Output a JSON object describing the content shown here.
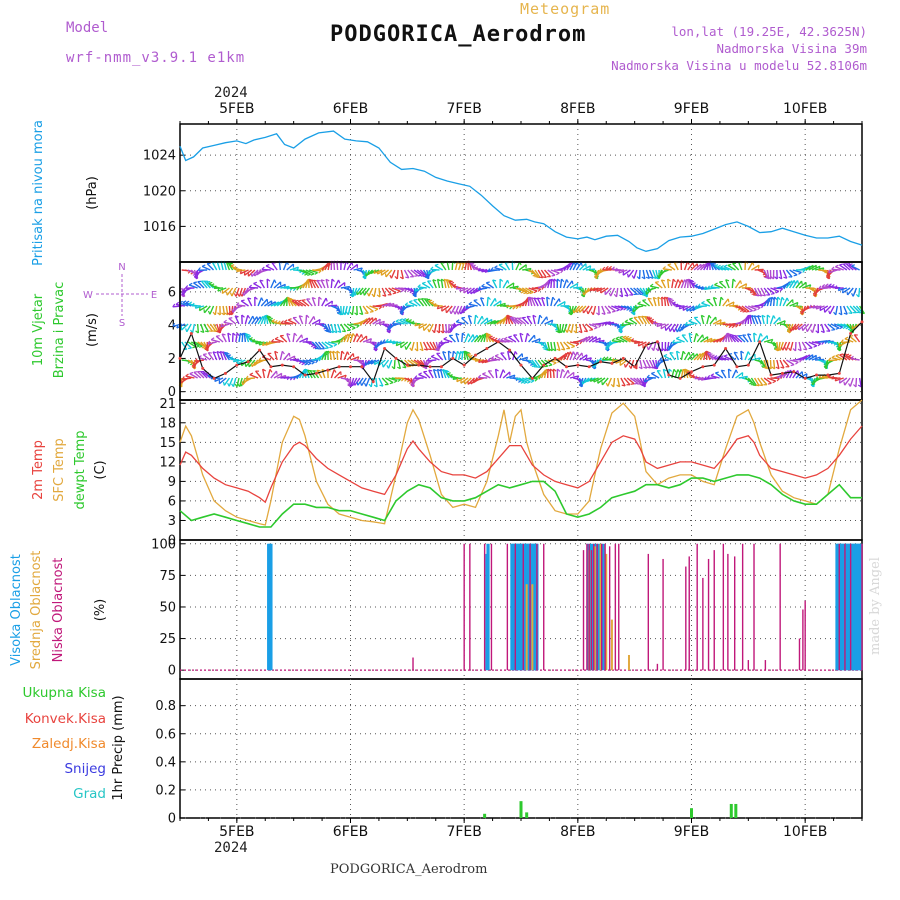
{
  "header": {
    "model_label": "Model",
    "model_version": "wrf-nmm_v3.9.1 e1km",
    "meteogram_label": "Meteogram",
    "station_title": "PODGORICA_Aerodrom",
    "lonlat": "lon,lat (19.25E, 42.3625N)",
    "elevation": "Nadmorska Visina 39m",
    "model_elevation": "Nadmorska Visina u modelu 52.8106m",
    "year_top": "2024",
    "year_bottom": "2024",
    "footer_station": "PODGORICA_Aerodrom",
    "made_by": "made by Angel"
  },
  "colors": {
    "pressure": "#1a9fe6",
    "temp2m": "#e8433e",
    "sfc_temp": "#e2a93f",
    "dewpoint": "#2ec92e",
    "high_cloud": "#1a9fe6",
    "mid_cloud": "#e2a93f",
    "low_cloud": "#c0187a",
    "total_precip": "#2ec92e",
    "conv_precip": "#e8433e",
    "frozen_precip": "#f08a2c",
    "snow": "#3b3be0",
    "graupel": "#27c6c6",
    "wind_dir_label": "#b05ccf"
  },
  "chart_data": [
    {
      "type": "line",
      "panel": "pressure",
      "ylabel": [
        "Pritisak na nivou mora",
        "(hPa)"
      ],
      "ylim": [
        1012,
        1027.5
      ],
      "yticks": [
        1016,
        1020,
        1024
      ],
      "x_unit": "days since 4FEB 00UTC",
      "xlim": [
        0.5,
        6.5
      ],
      "xticks": [
        1,
        2,
        3,
        4,
        5,
        6
      ],
      "xtick_labels": [
        "5FEB",
        "6FEB",
        "7FEB",
        "8FEB",
        "9FEB",
        "10FEB"
      ],
      "grid": true,
      "series": [
        {
          "name": "pressure",
          "x": [
            0.5,
            0.55,
            0.62,
            0.7,
            0.8,
            0.9,
            1.0,
            1.08,
            1.15,
            1.25,
            1.35,
            1.42,
            1.5,
            1.6,
            1.72,
            1.85,
            1.95,
            2.05,
            2.15,
            2.25,
            2.35,
            2.45,
            2.55,
            2.65,
            2.75,
            2.85,
            2.95,
            3.05,
            3.15,
            3.25,
            3.35,
            3.45,
            3.55,
            3.62,
            3.7,
            3.8,
            3.9,
            4.0,
            4.08,
            4.15,
            4.25,
            4.35,
            4.45,
            4.52,
            4.6,
            4.7,
            4.8,
            4.9,
            5.0,
            5.1,
            5.2,
            5.3,
            5.4,
            5.5,
            5.6,
            5.7,
            5.8,
            5.9,
            6.0,
            6.1,
            6.2,
            6.3,
            6.4,
            6.5
          ],
          "values": [
            1025,
            1023.4,
            1023.8,
            1024.8,
            1025.1,
            1025.4,
            1025.6,
            1025.3,
            1025.7,
            1026.0,
            1026.4,
            1025.2,
            1024.8,
            1025.8,
            1026.5,
            1026.7,
            1025.8,
            1025.6,
            1025.5,
            1024.8,
            1023.2,
            1022.4,
            1022.5,
            1022.2,
            1021.5,
            1021.1,
            1020.8,
            1020.5,
            1019.5,
            1018.3,
            1017.2,
            1016.7,
            1016.8,
            1016.5,
            1016.3,
            1015.4,
            1014.8,
            1014.6,
            1014.8,
            1014.5,
            1014.9,
            1015.0,
            1014.3,
            1013.6,
            1013.2,
            1013.5,
            1014.4,
            1014.8,
            1014.9,
            1015.2,
            1015.7,
            1016.2,
            1016.5,
            1016.0,
            1015.3,
            1015.4,
            1015.8,
            1015.4,
            1015.0,
            1014.7,
            1014.7,
            1014.9,
            1014.3,
            1013.9
          ]
        }
      ]
    },
    {
      "type": "line",
      "panel": "wind",
      "ylabel": [
        "10m Vjetar",
        "Brzina i Pravac",
        "(m/s)"
      ],
      "direction_legend": [
        "N",
        "W",
        "E",
        "S"
      ],
      "ylim": [
        -0.5,
        7.8
      ],
      "yticks": [
        0,
        2,
        4,
        6
      ],
      "xlim": [
        0.5,
        6.5
      ],
      "grid": true,
      "series": [
        {
          "name": "wind_speed",
          "x": [
            0.5,
            0.6,
            0.7,
            0.8,
            0.9,
            1.0,
            1.1,
            1.2,
            1.3,
            1.4,
            1.5,
            1.6,
            1.7,
            1.8,
            1.9,
            2.0,
            2.1,
            2.2,
            2.3,
            2.4,
            2.5,
            2.6,
            2.7,
            2.8,
            2.9,
            3.0,
            3.1,
            3.2,
            3.3,
            3.4,
            3.5,
            3.6,
            3.7,
            3.8,
            3.9,
            4.0,
            4.1,
            4.2,
            4.3,
            4.4,
            4.5,
            4.6,
            4.7,
            4.8,
            4.9,
            5.0,
            5.1,
            5.2,
            5.3,
            5.4,
            5.5,
            5.6,
            5.7,
            5.8,
            5.9,
            6.0,
            6.1,
            6.2,
            6.3,
            6.4,
            6.5
          ],
          "values": [
            2.0,
            3.5,
            1.4,
            0.8,
            1.1,
            1.6,
            1.8,
            2.5,
            1.5,
            1.6,
            1.5,
            1.0,
            1.1,
            1.3,
            1.5,
            1.5,
            1.5,
            0.6,
            2.6,
            2.0,
            1.6,
            1.6,
            1.5,
            1.5,
            2.0,
            1.6,
            2.2,
            2.6,
            3.0,
            2.5,
            1.6,
            0.8,
            1.6,
            2.0,
            1.5,
            1.6,
            1.5,
            1.8,
            1.7,
            2.0,
            1.5,
            2.8,
            3.0,
            1.0,
            0.8,
            1.2,
            1.5,
            1.6,
            2.6,
            1.5,
            1.6,
            3.0,
            1.0,
            1.1,
            1.2,
            0.8,
            1.0,
            1.0,
            1.1,
            3.5,
            4.2
          ]
        }
      ]
    },
    {
      "type": "line",
      "panel": "temperature",
      "ylabel": [
        "2m Temp",
        "SFC Temp",
        "dewpt Temp",
        "(C)"
      ],
      "ylim": [
        0,
        21.5
      ],
      "yticks": [
        0,
        3,
        6,
        9,
        12,
        15,
        18,
        21
      ],
      "xlim": [
        0.5,
        6.5
      ],
      "grid": true,
      "series": [
        {
          "name": "2m Temp",
          "x": [
            0.5,
            0.55,
            0.6,
            0.7,
            0.8,
            0.9,
            1.0,
            1.1,
            1.2,
            1.25,
            1.3,
            1.4,
            1.5,
            1.55,
            1.6,
            1.7,
            1.8,
            1.9,
            2.0,
            2.1,
            2.2,
            2.3,
            2.4,
            2.5,
            2.55,
            2.6,
            2.7,
            2.8,
            2.9,
            3.0,
            3.1,
            3.2,
            3.3,
            3.4,
            3.5,
            3.55,
            3.6,
            3.7,
            3.8,
            3.9,
            4.0,
            4.1,
            4.2,
            4.3,
            4.4,
            4.5,
            4.55,
            4.6,
            4.7,
            4.8,
            4.9,
            5.0,
            5.1,
            5.2,
            5.3,
            5.4,
            5.5,
            5.55,
            5.6,
            5.7,
            5.8,
            5.9,
            6.0,
            6.1,
            6.2,
            6.3,
            6.4,
            6.5
          ],
          "values": [
            11.5,
            13.5,
            13.0,
            11.0,
            9.5,
            8.5,
            8.0,
            7.5,
            6.5,
            5.8,
            8.0,
            12.0,
            14.5,
            15.0,
            14.5,
            12.5,
            11.0,
            10.0,
            9.0,
            8.0,
            7.5,
            7.0,
            10.0,
            14.0,
            15.2,
            14.0,
            12.0,
            10.5,
            10.0,
            10.0,
            9.5,
            10.5,
            12.5,
            14.5,
            14.5,
            13.0,
            11.5,
            10.0,
            9.0,
            8.5,
            8.0,
            9.0,
            12.0,
            15.0,
            16.0,
            15.5,
            14.0,
            12.0,
            11.0,
            11.5,
            12.0,
            12.0,
            11.5,
            11.0,
            13.0,
            15.5,
            16.0,
            15.0,
            13.0,
            11.0,
            10.5,
            10.0,
            9.5,
            10.0,
            11.0,
            13.0,
            15.5,
            17.5
          ]
        },
        {
          "name": "SFC Temp",
          "x": [
            0.5,
            0.55,
            0.6,
            0.7,
            0.8,
            0.9,
            1.0,
            1.1,
            1.2,
            1.25,
            1.3,
            1.4,
            1.5,
            1.55,
            1.6,
            1.7,
            1.8,
            1.9,
            2.0,
            2.1,
            2.2,
            2.3,
            2.4,
            2.5,
            2.55,
            2.6,
            2.7,
            2.8,
            2.9,
            3.0,
            3.1,
            3.2,
            3.3,
            3.35,
            3.4,
            3.45,
            3.5,
            3.55,
            3.6,
            3.7,
            3.8,
            3.9,
            4.0,
            4.1,
            4.2,
            4.3,
            4.4,
            4.5,
            4.55,
            4.6,
            4.7,
            4.8,
            4.9,
            5.0,
            5.1,
            5.2,
            5.3,
            5.4,
            5.5,
            5.55,
            5.6,
            5.7,
            5.8,
            5.9,
            6.0,
            6.1,
            6.2,
            6.3,
            6.4,
            6.5
          ],
          "values": [
            15.0,
            17.5,
            16.0,
            10.0,
            6.0,
            4.5,
            3.5,
            3.0,
            2.5,
            2.3,
            6.0,
            15.0,
            19.0,
            18.5,
            16.0,
            9.0,
            5.5,
            4.0,
            3.5,
            3.0,
            2.8,
            2.5,
            10.0,
            18.0,
            20.0,
            18.5,
            13.0,
            7.0,
            5.0,
            5.5,
            5.0,
            9.0,
            16.0,
            20.0,
            15.0,
            19.0,
            20.0,
            15.0,
            12.0,
            7.0,
            4.5,
            4.0,
            4.0,
            6.0,
            14.0,
            19.5,
            21.0,
            19.0,
            15.0,
            10.5,
            8.5,
            9.5,
            10.0,
            10.0,
            9.0,
            8.5,
            14.0,
            19.0,
            20.0,
            18.0,
            15.0,
            10.0,
            7.5,
            6.5,
            6.0,
            5.5,
            7.0,
            14.0,
            20.0,
            21.5
          ]
        },
        {
          "name": "dewpt Temp",
          "x": [
            0.5,
            0.6,
            0.7,
            0.8,
            0.9,
            1.0,
            1.1,
            1.2,
            1.3,
            1.4,
            1.5,
            1.6,
            1.7,
            1.8,
            1.9,
            2.0,
            2.1,
            2.2,
            2.3,
            2.4,
            2.5,
            2.6,
            2.7,
            2.8,
            2.9,
            3.0,
            3.1,
            3.2,
            3.3,
            3.4,
            3.5,
            3.6,
            3.7,
            3.8,
            3.9,
            4.0,
            4.1,
            4.2,
            4.3,
            4.4,
            4.5,
            4.6,
            4.7,
            4.8,
            4.9,
            5.0,
            5.1,
            5.2,
            5.3,
            5.4,
            5.5,
            5.6,
            5.7,
            5.8,
            5.9,
            6.0,
            6.1,
            6.2,
            6.3,
            6.4,
            6.5
          ],
          "values": [
            4.5,
            3.0,
            3.5,
            4.0,
            3.5,
            3.0,
            2.5,
            2.0,
            2.0,
            4.0,
            5.5,
            5.5,
            5.0,
            5.0,
            4.5,
            4.5,
            4.0,
            3.5,
            3.0,
            6.0,
            7.5,
            8.5,
            8.0,
            6.5,
            6.0,
            6.0,
            6.5,
            7.5,
            8.5,
            8.0,
            8.5,
            9.0,
            9.0,
            7.5,
            4.0,
            3.5,
            4.0,
            5.0,
            6.5,
            7.0,
            7.5,
            8.5,
            8.5,
            8.0,
            8.5,
            9.5,
            9.5,
            9.0,
            9.5,
            10.0,
            10.0,
            9.5,
            8.5,
            7.0,
            6.0,
            5.5,
            5.5,
            7.0,
            8.5,
            6.5,
            6.5
          ]
        }
      ]
    },
    {
      "type": "bar",
      "panel": "cloud",
      "ylabel": [
        "Visoka Oblacnost",
        "Srednja Oblacnost",
        "Niska Oblacnost",
        "(%)"
      ],
      "ylim": [
        -7,
        103
      ],
      "yticks": [
        0,
        25,
        50,
        75,
        100
      ],
      "xlim": [
        0.5,
        6.5
      ],
      "grid": true,
      "series": [
        {
          "name": "Visoka Oblacnost",
          "x": [
            1.28,
            1.29,
            1.3,
            3.2,
            3.21,
            3.42,
            3.43,
            3.44,
            3.45,
            3.46,
            3.47,
            3.48,
            3.49,
            3.5,
            3.51,
            3.52,
            3.53,
            3.54,
            3.55,
            3.56,
            3.57,
            3.58,
            3.59,
            3.6,
            3.61,
            3.62,
            3.63,
            3.64,
            4.09,
            4.1,
            4.12,
            4.15,
            4.18,
            4.2,
            4.22,
            6.28,
            6.29,
            6.3,
            6.31,
            6.32,
            6.33,
            6.34,
            6.35,
            6.36,
            6.37,
            6.38,
            6.39,
            6.4,
            6.41,
            6.42,
            6.43,
            6.44,
            6.45,
            6.46,
            6.47,
            6.48,
            6.49
          ],
          "values": [
            100,
            100,
            100,
            92,
            100,
            100,
            100,
            100,
            100,
            100,
            100,
            100,
            100,
            100,
            100,
            100,
            100,
            100,
            100,
            100,
            100,
            100,
            100,
            100,
            100,
            100,
            100,
            100,
            100,
            98,
            100,
            100,
            100,
            98,
            100,
            100,
            100,
            100,
            100,
            100,
            100,
            100,
            100,
            100,
            100,
            100,
            100,
            100,
            100,
            100,
            100,
            100,
            100,
            100,
            100,
            100,
            100
          ]
        },
        {
          "name": "Srednja Oblacnost",
          "x": [
            3.55,
            3.6,
            4.1,
            4.15,
            4.2,
            4.25,
            4.3,
            4.45
          ],
          "values": [
            68,
            68,
            95,
            98,
            100,
            92,
            40,
            12
          ]
        },
        {
          "name": "Niska Oblacnost",
          "x": [
            2.55,
            3.0,
            3.05,
            3.18,
            3.24,
            3.38,
            3.45,
            3.52,
            3.58,
            3.64,
            3.7,
            4.05,
            4.08,
            4.1,
            4.12,
            4.14,
            4.17,
            4.21,
            4.24,
            4.28,
            4.33,
            4.36,
            4.62,
            4.7,
            4.75,
            4.95,
            4.98,
            5.05,
            5.1,
            5.15,
            5.2,
            5.28,
            5.32,
            5.38,
            5.45,
            5.5,
            5.55,
            5.65,
            5.78,
            5.95,
            5.98,
            6.0,
            6.3,
            6.35,
            6.4,
            6.5
          ],
          "values": [
            10,
            100,
            100,
            100,
            100,
            100,
            100,
            100,
            100,
            100,
            100,
            95,
            100,
            100,
            95,
            100,
            100,
            100,
            100,
            98,
            100,
            100,
            92,
            5,
            88,
            82,
            90,
            100,
            73,
            88,
            95,
            100,
            92,
            90,
            100,
            8,
            100,
            8,
            100,
            25,
            48,
            55,
            100,
            100,
            100,
            100
          ]
        }
      ]
    },
    {
      "type": "bar",
      "panel": "precip",
      "ylabel": [
        "1hr Precip (mm)"
      ],
      "ylim": [
        0,
        0.99
      ],
      "yticks": [
        0,
        0.2,
        0.4,
        0.6,
        0.8
      ],
      "xlim": [
        0.5,
        6.5
      ],
      "xticks": [
        1,
        2,
        3,
        4,
        5,
        6
      ],
      "xtick_labels": [
        "5FEB",
        "6FEB",
        "7FEB",
        "8FEB",
        "9FEB",
        "10FEB"
      ],
      "grid": true,
      "legend": [
        "Ukupna Kisa",
        "Konvek.Kisa",
        "Zaledj.Kisa",
        "Snijeg",
        "Grad"
      ],
      "series": [
        {
          "name": "Ukupna Kisa",
          "x": [
            3.18,
            3.5,
            3.55,
            5.0,
            5.35,
            5.39
          ],
          "values": [
            0.03,
            0.12,
            0.04,
            0.07,
            0.1,
            0.1
          ]
        }
      ]
    }
  ]
}
